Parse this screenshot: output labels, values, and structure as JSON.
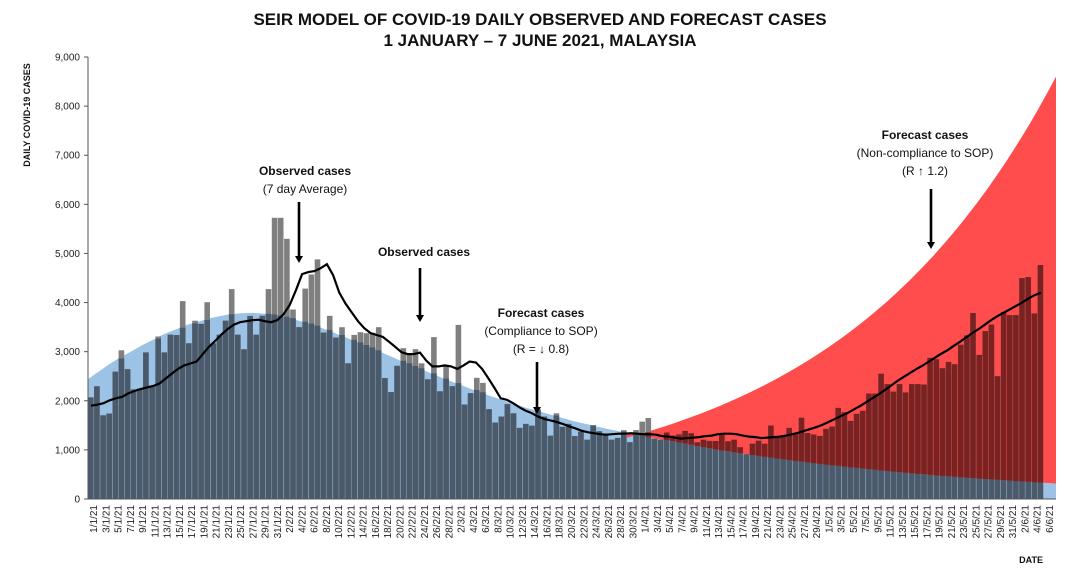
{
  "chart_data": {
    "type": "bar",
    "title": "SEIR MODEL OF COVID-19 DAILY OBSERVED AND FORECAST CASES",
    "subtitle": "1 JANUARY  – 7 JUNE 2021, MALAYSIA",
    "ylabel": "DAILY COVID-19 CASES",
    "xlabel": "DATE",
    "ylim": [
      0,
      9000
    ],
    "yticks": [
      "0",
      "1,000",
      "2,000",
      "3,000",
      "4,000",
      "5,000",
      "6,000",
      "7,000",
      "8,000",
      "9,000"
    ],
    "x_tick_labels": [
      "1/1/21",
      "3/1/21",
      "5/1/21",
      "7/1/21",
      "9/1/21",
      "11/1/21",
      "13/1/21",
      "15/1/21",
      "17/1/21",
      "19/1/21",
      "21/1/21",
      "23/1/21",
      "25/1/21",
      "27/1/21",
      "29/1/21",
      "31/1/21",
      "2/2/21",
      "4/2/21",
      "6/2/21",
      "8/2/21",
      "10/2/21",
      "12/2/21",
      "14/2/21",
      "16/2/21",
      "18/2/21",
      "20/2/21",
      "22/2/21",
      "24/2/21",
      "26/2/21",
      "28/2/21",
      "2/3/21",
      "4/3/21",
      "6/3/21",
      "8/3/21",
      "10/3/21",
      "12/3/21",
      "14/3/21",
      "16/3/21",
      "18/3/21",
      "20/3/21",
      "22/3/21",
      "24/3/21",
      "26/3/21",
      "28/3/21",
      "30/3/21",
      "1/4/21",
      "3/4/21",
      "5/4/21",
      "7/4/21",
      "9/4/21",
      "11/4/21",
      "13/4/21",
      "15/4/21",
      "17/4/21",
      "19/4/21",
      "21/4/21",
      "23/4/21",
      "25/4/21",
      "27/4/21",
      "29/4/21",
      "1/5/21",
      "3/5/21",
      "5/5/21",
      "7/5/21",
      "9/5/21",
      "11/5/21",
      "13/5/21",
      "15/5/21",
      "17/5/21",
      "19/5/21",
      "21/5/21",
      "23/5/21",
      "25/5/21",
      "27/5/21",
      "29/5/21",
      "31/5/21",
      "2/6/21",
      "4/6/21",
      "6/6/21"
    ],
    "observed_daily": [
      2068,
      2295,
      1704,
      1741,
      2593,
      3027,
      2643,
      2232,
      2251,
      2985,
      2309,
      3309,
      2985,
      3346,
      3337,
      4029,
      3170,
      3631,
      3566,
      4008,
      3170,
      3346,
      3631,
      4275,
      3346,
      3048,
      3729,
      3346,
      3731,
      4275,
      5725,
      5725,
      5298,
      3858,
      3499,
      4284,
      4571,
      4878,
      3391,
      3731,
      3288,
      3499,
      2764,
      3342,
      3397,
      3376,
      3384,
      3499,
      2461,
      2176,
      2712,
      3070,
      2936,
      3050,
      2764,
      2437,
      3297,
      2192,
      2701,
      2297,
      3545,
      1924,
      2154,
      2468,
      2364,
      1828,
      1555,
      1680,
      1932,
      1745,
      1448,
      1529,
      1493,
      1828,
      1680,
      1289,
      1745,
      1471,
      1529,
      1280,
      1371,
      1208,
      1500,
      1379,
      1329,
      1208,
      1245,
      1401,
      1156,
      1404,
      1575,
      1650,
      1228,
      1208,
      1354,
      1290,
      1316,
      1386,
      1340,
      1155,
      1208,
      1184,
      1181,
      1308,
      1176,
      1208,
      1054,
      911,
      1128,
      1188,
      1127,
      1496,
      1251,
      1291,
      1447,
      1320,
      1655,
      1343,
      1314,
      1285,
      1429,
      1476,
      1854,
      1767,
      1591,
      1734,
      1795,
      2148,
      2148,
      2551,
      2340,
      2187,
      2340,
      2170,
      2340,
      2340,
      2331,
      2875,
      2847,
      2663,
      2791,
      2745,
      3142,
      3332,
      3788,
      2935,
      3418,
      3551,
      2500,
      3807,
      3744,
      3744,
      4498,
      4519,
      3780,
      4765
    ],
    "observed_7day_avg": [
      1900,
      1920,
      1950,
      2010,
      2050,
      2080,
      2150,
      2200,
      2240,
      2270,
      2300,
      2350,
      2450,
      2550,
      2650,
      2720,
      2760,
      2800,
      2950,
      3100,
      3220,
      3350,
      3460,
      3550,
      3600,
      3620,
      3640,
      3650,
      3620,
      3600,
      3640,
      3760,
      3950,
      4250,
      4580,
      4620,
      4640,
      4700,
      4780,
      4560,
      4200,
      3980,
      3800,
      3620,
      3480,
      3380,
      3340,
      3300,
      3200,
      3100,
      2990,
      2950,
      2950,
      2980,
      2820,
      2700,
      2700,
      2720,
      2700,
      2650,
      2720,
      2800,
      2780,
      2650,
      2460,
      2260,
      2050,
      2020,
      1950,
      1870,
      1800,
      1750,
      1680,
      1630,
      1600,
      1570,
      1530,
      1480,
      1440,
      1390,
      1360,
      1340,
      1320,
      1310,
      1320,
      1330,
      1330,
      1340,
      1330,
      1320,
      1320,
      1310,
      1280,
      1270,
      1250,
      1230,
      1240,
      1250,
      1260,
      1280,
      1290,
      1320,
      1330,
      1330,
      1320,
      1290,
      1270,
      1260,
      1240,
      1250,
      1260,
      1270,
      1290,
      1320,
      1350,
      1390,
      1430,
      1470,
      1520,
      1580,
      1640,
      1700,
      1760,
      1830,
      1900,
      1980,
      2060,
      2140,
      2230,
      2320,
      2410,
      2490,
      2570,
      2650,
      2720,
      2800,
      2880,
      2960,
      3030,
      3120,
      3200,
      3290,
      3380,
      3460,
      3550,
      3640,
      3720,
      3790,
      3860,
      3930,
      4000,
      4080,
      4150,
      4200
    ],
    "forecast_compliance_R_0_8": [
      2440,
      2520,
      2590,
      2670,
      2740,
      2810,
      2870,
      2930,
      2990,
      3050,
      3110,
      3170,
      3220,
      3270,
      3330,
      3380,
      3420,
      3460,
      3510,
      3550,
      3580,
      3610,
      3640,
      3670,
      3700,
      3720,
      3740,
      3760,
      3770,
      3780,
      3790,
      3790,
      3790,
      3780,
      3770,
      3760,
      3740,
      3720,
      3700,
      3670,
      3640,
      3610,
      3580,
      3540,
      3510,
      3470,
      3430,
      3390,
      3340,
      3300,
      3260,
      3210,
      3170,
      3120,
      3080,
      3030,
      2990,
      2940,
      2900,
      2850,
      2800,
      2760,
      2710,
      2670,
      2630,
      2580,
      2540,
      2500,
      2450,
      2410,
      2370,
      2330,
      2290,
      2250,
      2210,
      2170,
      2130,
      2090,
      2060,
      2020,
      1990,
      1950,
      1920,
      1880,
      1850,
      1820,
      1790,
      1760,
      1730,
      1700,
      1670,
      1640,
      1610,
      1580,
      1560,
      1530,
      1510,
      1480,
      1460,
      1430,
      1410,
      1390,
      1370,
      1340,
      1320,
      1300,
      1280,
      1260,
      1240,
      1220,
      1200,
      1180,
      1160,
      1140,
      1120,
      1100,
      1080,
      1060,
      1040,
      1020,
      1000,
      985,
      968,
      951,
      935,
      919,
      903,
      887,
      872,
      857,
      842,
      827,
      813,
      799,
      785,
      771,
      758,
      745,
      732,
      719,
      707,
      695,
      683,
      671,
      659,
      647,
      636,
      625,
      614,
      603,
      592,
      581,
      571,
      561,
      551,
      541,
      531,
      522,
      513,
      504,
      495,
      486,
      477,
      469,
      461,
      453,
      445,
      437,
      429,
      421,
      414,
      407,
      400,
      393,
      386,
      379,
      372,
      365,
      358,
      351,
      345,
      339,
      333,
      327,
      321,
      315
    ],
    "forecast_noncompliance_R_1_2_start": "30/3/21",
    "forecast_noncompliance_R_1_2_end_value": 8600,
    "legend": "none",
    "grid": false,
    "annotations": {
      "observed_avg": {
        "title": "Observed cases",
        "detail": "(7 day Average)"
      },
      "observed": {
        "title": "Observed cases"
      },
      "compliance": {
        "title": "Forecast cases",
        "detail": "(Compliance to SOP)",
        "r": "(R = ↓ 0.8)"
      },
      "noncompliance": {
        "title": "Forecast cases",
        "detail": "(Non-compliance to SOP)",
        "r": "(R ↑ 1.2)"
      }
    },
    "colors": {
      "observed_bar": "#7f7f7f",
      "forecast_low": "#9cc3e6",
      "overlap_dark": "#4a5a6b",
      "forecast_high": "#ff4d4d",
      "overlap_red": "#7a2222",
      "line": "#000000"
    }
  }
}
